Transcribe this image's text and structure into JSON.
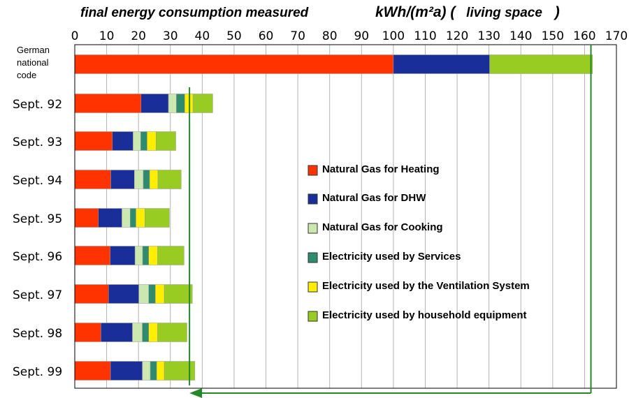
{
  "chart_data": {
    "type": "bar",
    "orientation": "horizontal",
    "stacked": true,
    "title": "final energy consumption measured",
    "unit_label_prefix": "kWh/(m²a) (",
    "unit_label_text": "living space",
    "unit_label_suffix": ")",
    "xlim": [
      0,
      170
    ],
    "xticks": [
      0,
      10,
      20,
      30,
      40,
      50,
      60,
      70,
      80,
      90,
      100,
      110,
      120,
      130,
      140,
      150,
      160,
      170
    ],
    "grid": "vertical",
    "legend_position": "center-right",
    "categories": [
      [
        "German",
        "national",
        "code"
      ],
      [
        "Sept. 92"
      ],
      [
        "Sept. 93"
      ],
      [
        "Sept. 94"
      ],
      [
        "Sept. 95"
      ],
      [
        "Sept. 96"
      ],
      [
        "Sept. 97"
      ],
      [
        "Sept. 98"
      ],
      [
        "Sept. 99"
      ]
    ],
    "series": [
      {
        "name": "Natural Gas for Heating",
        "color": "#ff3300",
        "values": [
          100,
          20.8,
          11.8,
          11.3,
          7.4,
          11.1,
          10.6,
          8.2,
          11.2
        ]
      },
      {
        "name": "Natural Gas for DHW",
        "color": "#1a2e99",
        "values": [
          30.2,
          8.6,
          6.5,
          7.4,
          7.4,
          7.8,
          9.5,
          9.9,
          10.0
        ]
      },
      {
        "name": "Natural Gas for Cooking",
        "color": "#cce8b0",
        "values": [
          0,
          2.5,
          2.4,
          2.8,
          2.6,
          2.4,
          3.1,
          3.1,
          2.5
        ]
      },
      {
        "name": "Electricity used by Services",
        "color": "#2e8b6e",
        "values": [
          0,
          2.6,
          2.0,
          2.0,
          1.8,
          1.9,
          2.1,
          2.0,
          2.0
        ]
      },
      {
        "name": "Electricity used by the Ventilation System",
        "color": "#ffee00",
        "values": [
          0,
          2.6,
          2.8,
          2.6,
          2.8,
          2.8,
          2.8,
          2.8,
          2.4
        ]
      },
      {
        "name": "Electricity used by household equipment",
        "color": "#99cc22",
        "values": [
          32.3,
          6.2,
          6.2,
          7.3,
          7.7,
          8.3,
          8.8,
          9.2,
          9.6
        ]
      }
    ],
    "annotation_markers": [
      36,
      162
    ],
    "marker_color": "#22882a"
  }
}
